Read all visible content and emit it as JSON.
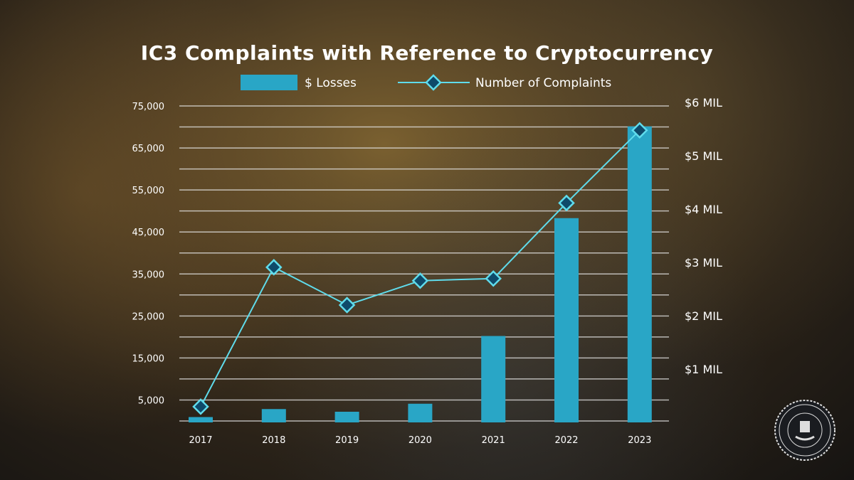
{
  "chart_data": {
    "type": "bar",
    "title": "IC3 Complaints with Reference to Cryptocurrency",
    "categories": [
      "2017",
      "2018",
      "2019",
      "2020",
      "2021",
      "2022",
      "2023"
    ],
    "series": [
      {
        "name": "$ Losses",
        "kind": "bar",
        "axis": "right",
        "unit": "MIL",
        "values": [
          0.1,
          0.25,
          0.2,
          0.35,
          1.62,
          3.83,
          5.55
        ],
        "color": "#29a6c6"
      },
      {
        "name": "Number of Complaints",
        "kind": "line",
        "axis": "left",
        "values": [
          3400,
          36600,
          27600,
          33400,
          33900,
          51900,
          69200
        ],
        "color": "#5fdcec",
        "marker": "diamond"
      }
    ],
    "left_axis": {
      "range": [
        0,
        75000
      ],
      "ticks": [
        "75,000",
        "65,000",
        "55,000",
        "45,000",
        "35,000",
        "25,000",
        "15,000",
        "5,000"
      ],
      "tick_values": [
        75000,
        65000,
        55000,
        45000,
        35000,
        25000,
        15000,
        5000
      ]
    },
    "right_axis": {
      "range": [
        0,
        6
      ],
      "ticks": [
        "$6 MIL",
        "$5 MIL",
        "$4 MIL",
        "$3 MIL",
        "$2 MIL",
        "$1 MIL"
      ],
      "tick_values": [
        6,
        5,
        4,
        3,
        2,
        1
      ]
    },
    "grid": true,
    "legend": "top-center"
  },
  "logo": {
    "text": "DEPARTMENT OF JUSTICE · FEDERAL BUREAU OF INVESTIGATION"
  }
}
